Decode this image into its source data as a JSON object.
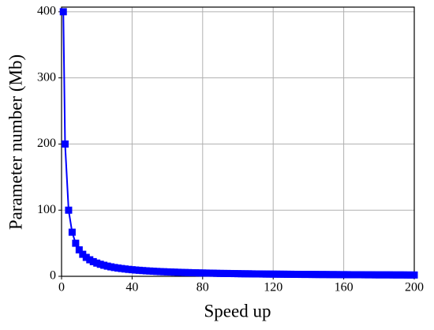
{
  "chart_data": {
    "type": "line",
    "x_label": "Speed up",
    "y_label": "Parameter number (Mb)",
    "x": [
      1,
      2,
      4,
      6,
      8,
      10,
      12,
      14,
      16,
      18,
      20,
      22,
      24,
      26,
      28,
      30,
      32,
      34,
      36,
      38,
      40,
      42,
      44,
      46,
      48,
      50,
      52,
      54,
      56,
      58,
      60,
      62,
      64,
      66,
      68,
      70,
      72,
      74,
      76,
      78,
      80,
      82,
      84,
      86,
      88,
      90,
      92,
      94,
      96,
      98,
      100,
      102,
      104,
      106,
      108,
      110,
      112,
      114,
      116,
      118,
      120,
      122,
      124,
      126,
      128,
      130,
      132,
      134,
      136,
      138,
      140,
      142,
      144,
      146,
      148,
      150,
      152,
      154,
      156,
      158,
      160,
      162,
      164,
      166,
      168,
      170,
      172,
      174,
      176,
      178,
      180,
      182,
      184,
      186,
      188,
      190,
      192,
      194,
      196,
      198,
      200
    ],
    "values": [
      400,
      200,
      100,
      66.7,
      50,
      40,
      33.3,
      28.6,
      25,
      22.2,
      20,
      18.2,
      16.7,
      15.4,
      14.3,
      13.3,
      12.5,
      11.8,
      11.1,
      10.5,
      10,
      9.5,
      9.1,
      8.7,
      8.3,
      8,
      7.7,
      7.4,
      7.1,
      6.9,
      6.7,
      6.5,
      6.3,
      6.1,
      5.9,
      5.7,
      5.6,
      5.4,
      5.3,
      5.1,
      5,
      4.9,
      4.8,
      4.7,
      4.5,
      4.4,
      4.3,
      4.3,
      4.2,
      4.1,
      4,
      3.9,
      3.8,
      3.8,
      3.7,
      3.6,
      3.6,
      3.5,
      3.4,
      3.4,
      3.3,
      3.3,
      3.2,
      3.2,
      3.1,
      3.1,
      3,
      3,
      2.9,
      2.9,
      2.9,
      2.8,
      2.8,
      2.7,
      2.7,
      2.7,
      2.6,
      2.6,
      2.6,
      2.5,
      2.5,
      2.5,
      2.4,
      2.4,
      2.4,
      2.4,
      2.3,
      2.3,
      2.3,
      2.2,
      2.2,
      2.2,
      2.2,
      2.2,
      2.1,
      2.1,
      2.1,
      2.1,
      2,
      2,
      2
    ],
    "color": "#0000ff",
    "xlim": [
      0,
      200
    ],
    "xticks": [
      0,
      40,
      80,
      120,
      160,
      200
    ],
    "ylim": [
      0,
      407
    ],
    "yticks": [
      0,
      100,
      200,
      300,
      400
    ],
    "grid": true,
    "marker": "square"
  }
}
